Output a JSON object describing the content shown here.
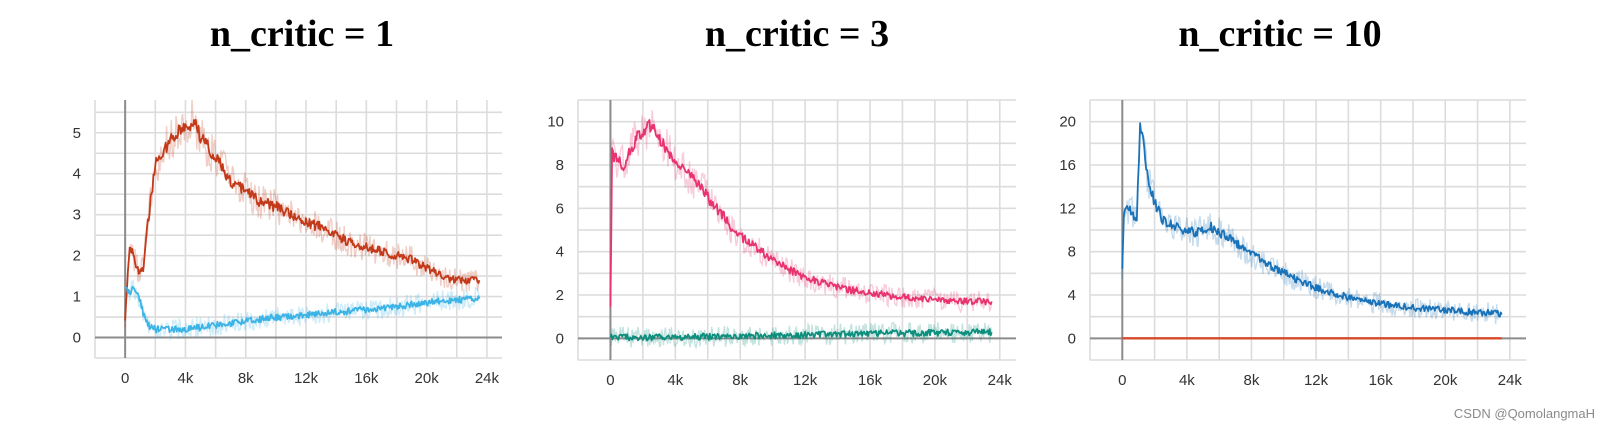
{
  "watermark": "CSDN @QomolangmaH",
  "chart_data": [
    {
      "type": "line",
      "title": "n_critic = 1",
      "xlim": [
        -2000,
        25000
      ],
      "ylim": [
        -0.5,
        5.8
      ],
      "x_ticks": [
        0,
        4000,
        8000,
        12000,
        16000,
        20000,
        24000
      ],
      "x_tick_labels": [
        "0",
        "4k",
        "8k",
        "12k",
        "16k",
        "20k",
        "24k"
      ],
      "y_ticks": [
        0,
        1,
        2,
        3,
        4,
        5
      ],
      "y_tick_labels": [
        "0",
        "1",
        "2",
        "3",
        "4",
        "5"
      ],
      "grid": true,
      "series": [
        {
          "color": "#c33a1a",
          "x": [
            0,
            300,
            600,
            900,
            1200,
            1500,
            2000,
            2500,
            3000,
            3500,
            4000,
            4500,
            5000,
            6000,
            7000,
            8000,
            9000,
            10000,
            11000,
            12000,
            13000,
            14000,
            15000,
            16000,
            17000,
            18000,
            19000,
            20000,
            21000,
            22000,
            23000,
            23500
          ],
          "y": [
            0.5,
            2.3,
            1.9,
            1.6,
            1.7,
            2.8,
            4.2,
            4.5,
            4.8,
            5.0,
            5.1,
            5.3,
            4.9,
            4.4,
            3.8,
            3.6,
            3.3,
            3.2,
            3.0,
            2.8,
            2.7,
            2.5,
            2.3,
            2.2,
            2.1,
            2.0,
            1.9,
            1.7,
            1.5,
            1.4,
            1.4,
            1.4
          ]
        },
        {
          "color": "#3cb4e6",
          "x": [
            0,
            300,
            600,
            900,
            1200,
            1500,
            2000,
            3000,
            4000,
            5000,
            6000,
            7000,
            8000,
            9000,
            10000,
            11000,
            12000,
            13000,
            14000,
            15000,
            16000,
            17000,
            18000,
            19000,
            20000,
            21000,
            22000,
            23000,
            23500
          ],
          "y": [
            1.3,
            1.1,
            1.2,
            1.0,
            0.6,
            0.3,
            0.2,
            0.2,
            0.2,
            0.25,
            0.3,
            0.35,
            0.4,
            0.45,
            0.5,
            0.5,
            0.55,
            0.6,
            0.62,
            0.65,
            0.68,
            0.7,
            0.75,
            0.8,
            0.85,
            0.9,
            0.92,
            0.95,
            0.95
          ]
        }
      ]
    },
    {
      "type": "line",
      "title": "n_critic = 3",
      "xlim": [
        -2000,
        25000
      ],
      "ylim": [
        -1.0,
        11.0
      ],
      "x_ticks": [
        0,
        4000,
        8000,
        12000,
        16000,
        20000,
        24000
      ],
      "x_tick_labels": [
        "0",
        "4k",
        "8k",
        "12k",
        "16k",
        "20k",
        "24k"
      ],
      "y_ticks": [
        0,
        2,
        4,
        6,
        8,
        10
      ],
      "y_tick_labels": [
        "0",
        "2",
        "4",
        "6",
        "8",
        "10"
      ],
      "grid": true,
      "series": [
        {
          "color": "#e8336e",
          "x": [
            0,
            100,
            400,
            800,
            1200,
            1600,
            2000,
            2400,
            2800,
            3200,
            3600,
            4000,
            4500,
            5000,
            5500,
            6000,
            6500,
            7000,
            7500,
            8000,
            9000,
            10000,
            11000,
            12000,
            13000,
            14000,
            15000,
            16000,
            17000,
            18000,
            19000,
            20000,
            21000,
            22000,
            23000,
            23500
          ],
          "y": [
            1.4,
            8.5,
            8.3,
            8.0,
            8.6,
            9.2,
            9.5,
            9.9,
            9.6,
            9.0,
            8.6,
            8.2,
            7.7,
            7.4,
            7.0,
            6.5,
            6.0,
            5.6,
            5.0,
            4.7,
            4.2,
            3.6,
            3.2,
            2.8,
            2.6,
            2.4,
            2.2,
            2.1,
            2.0,
            1.9,
            1.8,
            1.8,
            1.7,
            1.7,
            1.7,
            1.7
          ]
        },
        {
          "color": "#0e8f7e",
          "x": [
            0,
            2000,
            4000,
            6000,
            8000,
            10000,
            12000,
            14000,
            16000,
            18000,
            20000,
            22000,
            23500
          ],
          "y": [
            0.05,
            0.05,
            0.06,
            0.08,
            0.1,
            0.13,
            0.16,
            0.2,
            0.22,
            0.24,
            0.26,
            0.28,
            0.28
          ]
        }
      ]
    },
    {
      "type": "line",
      "title": "n_critic = 10",
      "xlim": [
        -2000,
        25000
      ],
      "ylim": [
        -2.0,
        22.0
      ],
      "x_ticks": [
        0,
        4000,
        8000,
        12000,
        16000,
        20000,
        24000
      ],
      "x_tick_labels": [
        "0",
        "4k",
        "8k",
        "12k",
        "16k",
        "20k",
        "24k"
      ],
      "y_ticks": [
        0,
        4,
        8,
        12,
        16,
        20
      ],
      "y_tick_labels": [
        "0",
        "4",
        "8",
        "12",
        "16",
        "20"
      ],
      "grid": true,
      "series": [
        {
          "color": "#1a72b8",
          "x": [
            0,
            100,
            300,
            600,
            900,
            1100,
            1300,
            1600,
            2000,
            2500,
            3000,
            3500,
            4000,
            4500,
            5000,
            5500,
            6000,
            7000,
            8000,
            9000,
            10000,
            11000,
            12000,
            13000,
            14000,
            15000,
            16000,
            17000,
            18000,
            19000,
            20000,
            21000,
            22000,
            23000,
            23500
          ],
          "y": [
            6.2,
            11.0,
            12.2,
            11.5,
            11.0,
            19.5,
            18.0,
            14.5,
            12.5,
            11.0,
            10.5,
            10.2,
            10.0,
            9.8,
            10.0,
            10.3,
            9.8,
            8.8,
            7.8,
            6.8,
            6.0,
            5.3,
            4.7,
            4.2,
            3.8,
            3.5,
            3.2,
            3.0,
            2.8,
            2.7,
            2.6,
            2.5,
            2.4,
            2.3,
            2.2
          ]
        },
        {
          "color": "#d84a2a",
          "x": [
            0,
            23500
          ],
          "y": [
            0.0,
            0.0
          ]
        }
      ]
    }
  ]
}
